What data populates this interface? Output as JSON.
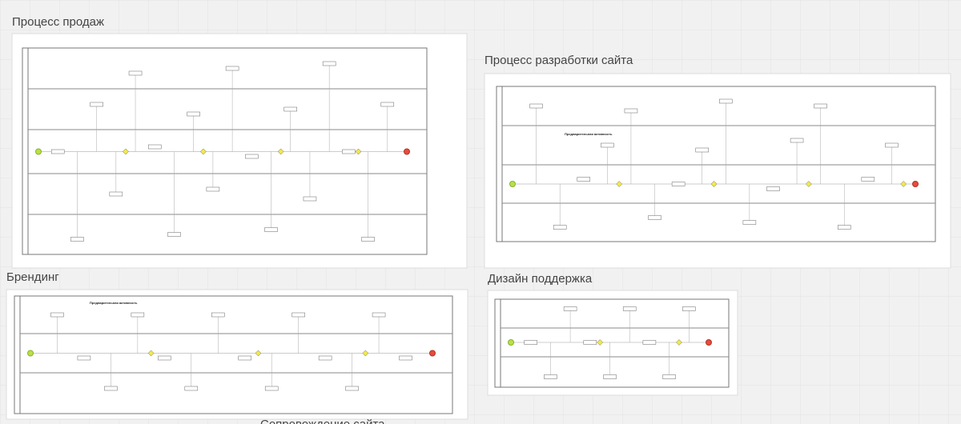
{
  "board": {
    "frames": [
      {
        "title": "Процесс продаж"
      },
      {
        "title": "Процесс разработки сайта",
        "note": "Предварительная активность"
      },
      {
        "title": "Брендинг",
        "note": "Предварительная активность"
      },
      {
        "title": "Дизайн поддержка"
      },
      {
        "title": "Сопровождение сайта"
      }
    ]
  }
}
